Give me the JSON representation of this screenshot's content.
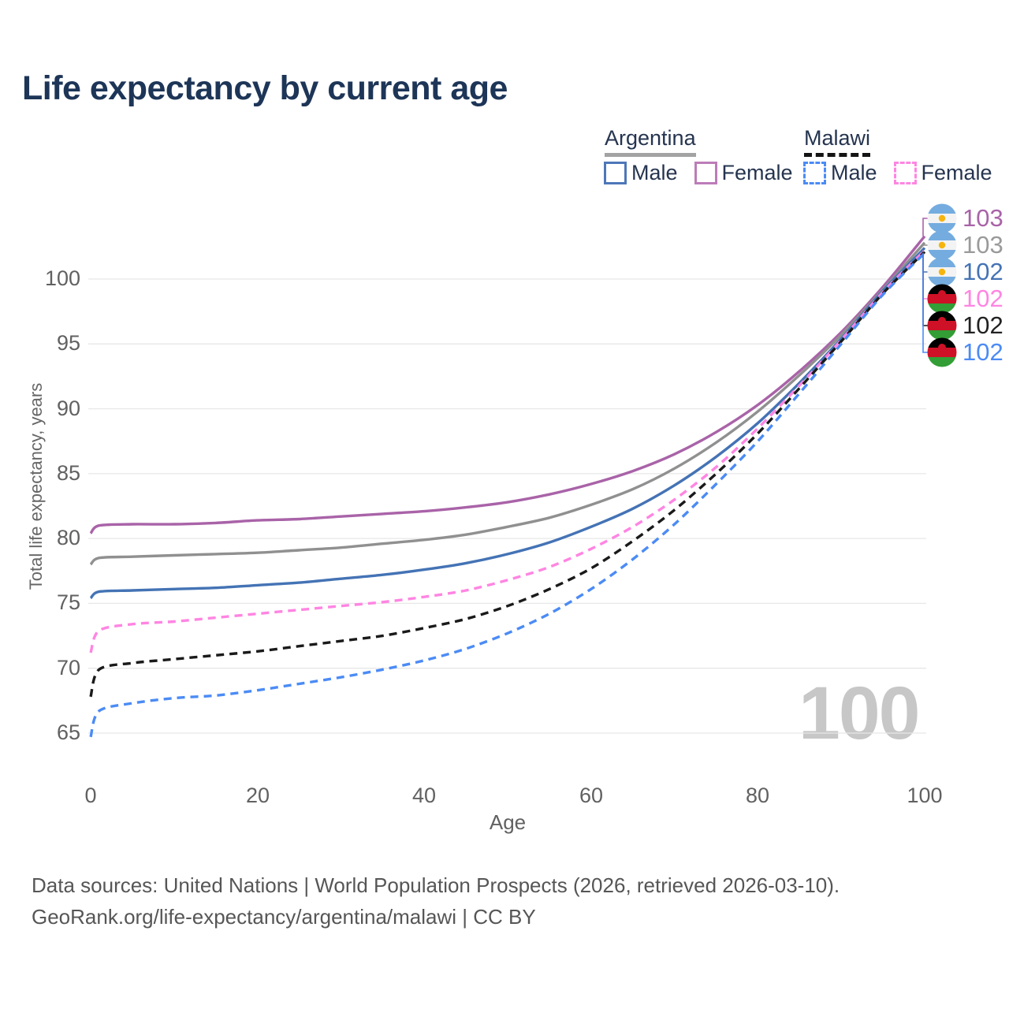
{
  "title": "Life expectancy by current age",
  "legend": {
    "groups": [
      {
        "country": "Argentina",
        "line_style": "solid",
        "underline_color": "#a3a3a3",
        "items": [
          {
            "label": "Male",
            "color": "#4d77b8",
            "dashed": false
          },
          {
            "label": "Female",
            "color": "#bc7cb8",
            "dashed": false
          }
        ]
      },
      {
        "country": "Malawi",
        "line_style": "dashed",
        "underline_color": "#141414",
        "items": [
          {
            "label": "Male",
            "color": "#4b8bf5",
            "dashed": true
          },
          {
            "label": "Female",
            "color": "#ff85e2",
            "dashed": true
          }
        ]
      }
    ]
  },
  "watermark": "100",
  "footer": {
    "line1": "Data sources: United Nations | World Population Prospects (2026, retrieved 2026-03-10).",
    "line2": "GeoRank.org/life-expectancy/argentina/malawi | CC BY"
  },
  "chart_data": {
    "type": "line",
    "title": "Life expectancy by current age",
    "xlabel": "Age",
    "ylabel": "Total life expectancy, years",
    "xlim": [
      0,
      100
    ],
    "ylim": [
      63,
      104
    ],
    "xticks": [
      0,
      20,
      40,
      60,
      80,
      100
    ],
    "yticks": [
      65,
      70,
      75,
      80,
      85,
      90,
      95,
      100
    ],
    "grid": "horizontal",
    "legend_position": "top-right",
    "x": [
      0,
      1,
      5,
      10,
      15,
      20,
      25,
      30,
      35,
      40,
      45,
      50,
      55,
      60,
      65,
      70,
      75,
      80,
      85,
      90,
      95,
      100
    ],
    "series": [
      {
        "name": "Argentina Female",
        "country": "Argentina",
        "sex": "Female",
        "color": "#a963a8",
        "dashed": false,
        "flag": "argentina",
        "end_label": "103",
        "end_label_color": "#a963a8",
        "values": [
          80.4,
          81.0,
          81.1,
          81.1,
          81.2,
          81.4,
          81.5,
          81.7,
          81.9,
          82.1,
          82.4,
          82.8,
          83.4,
          84.2,
          85.2,
          86.5,
          88.2,
          90.3,
          92.9,
          95.9,
          99.4,
          103.3
        ]
      },
      {
        "name": "Argentina",
        "country": "Argentina",
        "sex": "Both",
        "color": "#909090",
        "dashed": false,
        "flag": "argentina",
        "end_label": "103",
        "end_label_color": "#9a9a9a",
        "values": [
          78.0,
          78.5,
          78.6,
          78.7,
          78.8,
          78.9,
          79.1,
          79.3,
          79.6,
          79.9,
          80.3,
          80.9,
          81.6,
          82.6,
          83.8,
          85.4,
          87.4,
          89.8,
          92.6,
          95.7,
          99.2,
          102.8
        ]
      },
      {
        "name": "Argentina Male",
        "country": "Argentina",
        "sex": "Male",
        "color": "#4473b5",
        "dashed": false,
        "flag": "argentina",
        "end_label": "102",
        "end_label_color": "#4473b5",
        "values": [
          75.4,
          75.9,
          76.0,
          76.1,
          76.2,
          76.4,
          76.6,
          76.9,
          77.2,
          77.6,
          78.1,
          78.8,
          79.7,
          80.9,
          82.3,
          84.1,
          86.3,
          88.9,
          92.0,
          95.4,
          99.1,
          102.4
        ]
      },
      {
        "name": "Malawi Female",
        "country": "Malawi",
        "sex": "Female",
        "color": "#ff85e2",
        "dashed": true,
        "flag": "malawi",
        "end_label": "102",
        "end_label_color": "#ff85e2",
        "values": [
          71.2,
          72.9,
          73.4,
          73.6,
          73.9,
          74.2,
          74.5,
          74.8,
          75.1,
          75.5,
          76.0,
          76.8,
          77.8,
          79.2,
          80.9,
          83.0,
          85.5,
          88.5,
          91.8,
          95.3,
          99.0,
          102.2
        ]
      },
      {
        "name": "Malawi",
        "country": "Malawi",
        "sex": "Both",
        "color": "#1a1a1a",
        "dashed": true,
        "flag": "malawi",
        "end_label": "102",
        "end_label_color": "#222222",
        "values": [
          67.8,
          69.9,
          70.4,
          70.7,
          71.0,
          71.3,
          71.7,
          72.1,
          72.5,
          73.1,
          73.8,
          74.8,
          76.1,
          77.7,
          79.8,
          82.2,
          85.0,
          88.1,
          91.6,
          95.2,
          98.9,
          102.1
        ]
      },
      {
        "name": "Malawi Male",
        "country": "Malawi",
        "sex": "Male",
        "color": "#4b8bf5",
        "dashed": true,
        "flag": "malawi",
        "end_label": "102",
        "end_label_color": "#4b8bf5",
        "values": [
          64.7,
          66.7,
          67.3,
          67.7,
          67.9,
          68.3,
          68.8,
          69.3,
          69.9,
          70.6,
          71.5,
          72.7,
          74.2,
          76.1,
          78.4,
          81.1,
          84.2,
          87.5,
          91.2,
          95.0,
          98.8,
          102.0
        ]
      }
    ],
    "flag_colors": {
      "argentina_blue": "#74acdf",
      "argentina_white": "#f3f3f3",
      "argentina_sun": "#f6b40e",
      "malawi_black": "#000000",
      "malawi_red": "#ce1126",
      "malawi_green": "#339e35"
    }
  }
}
